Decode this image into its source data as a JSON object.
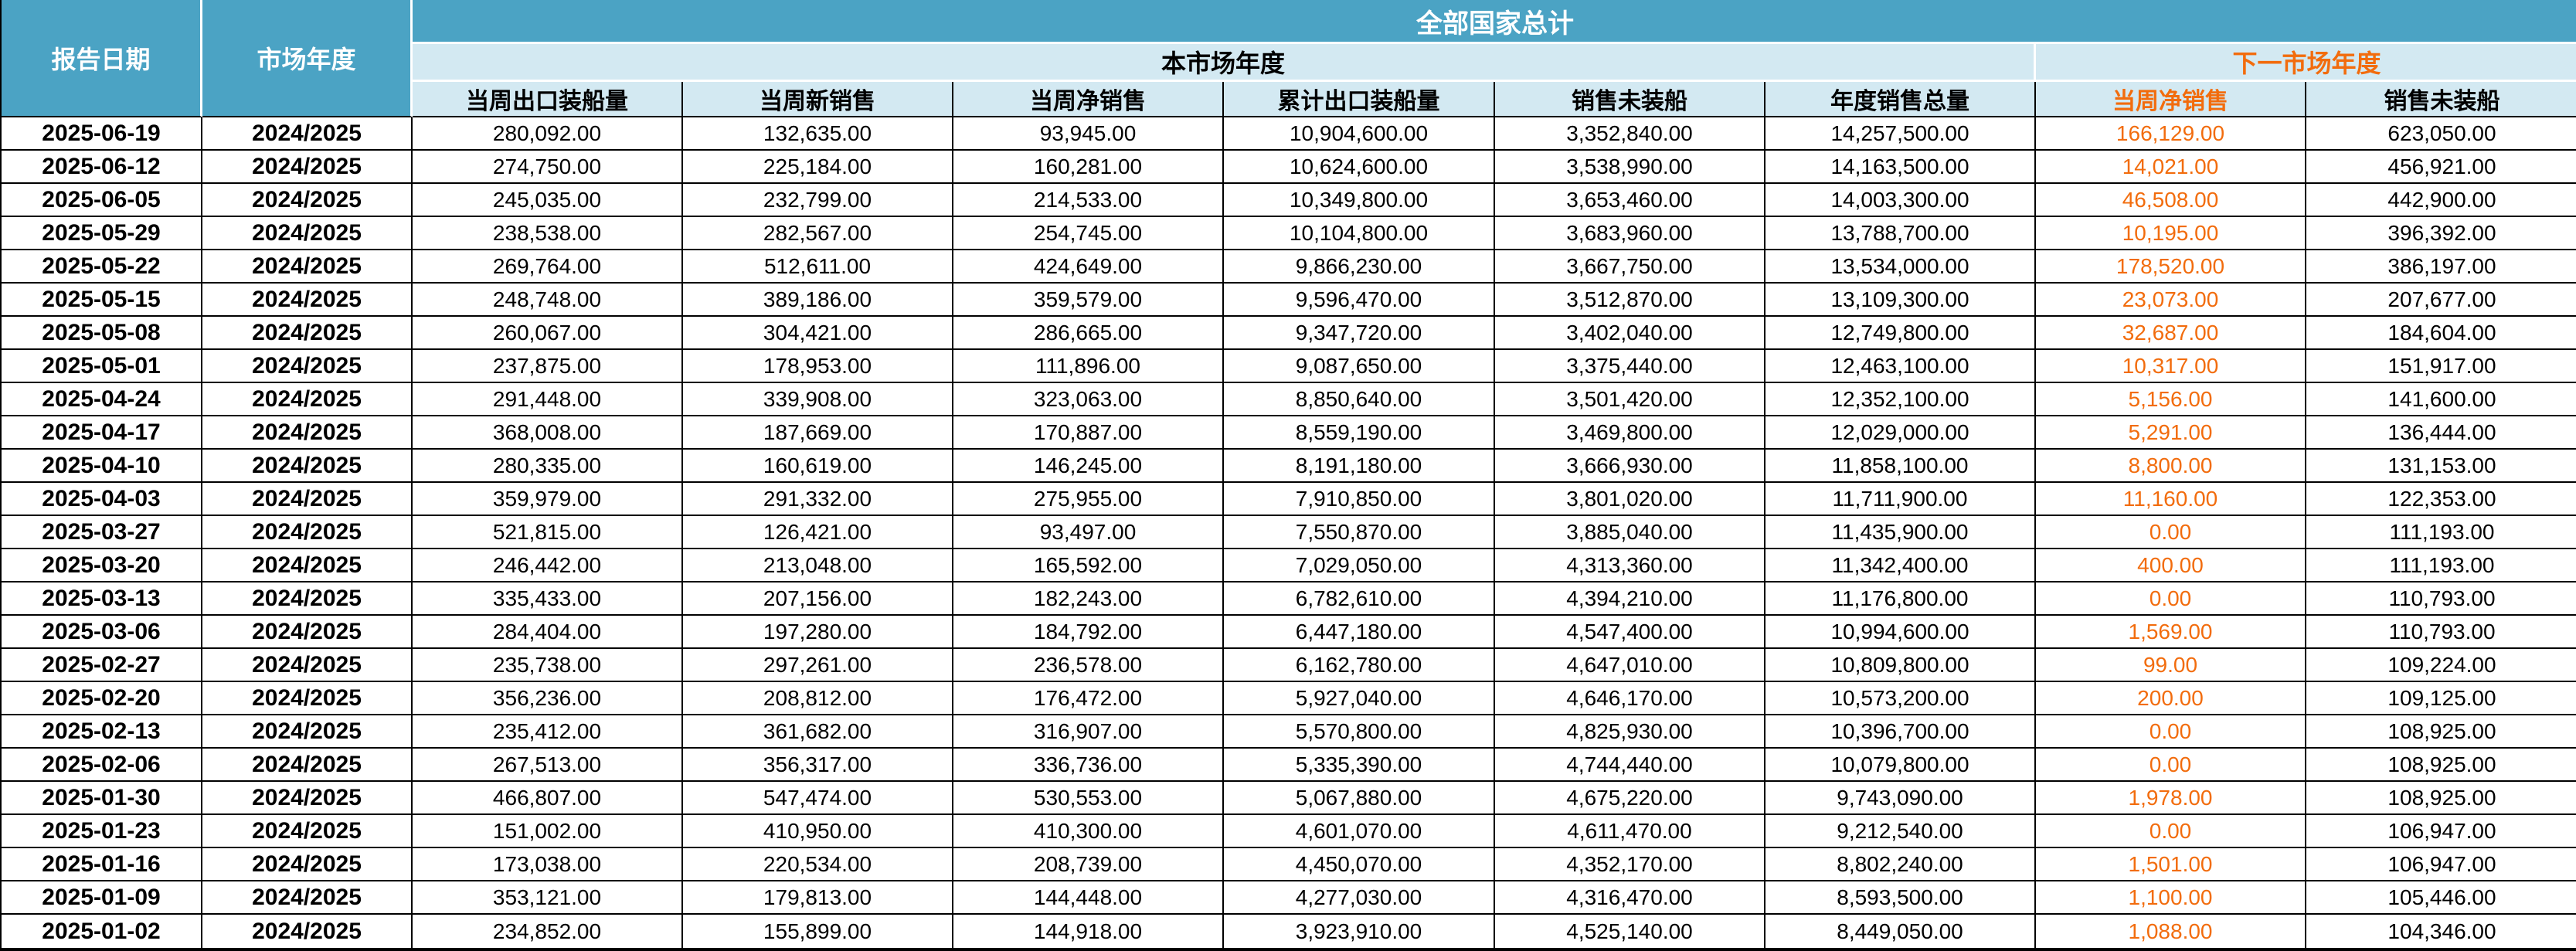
{
  "table": {
    "corner_headers": {
      "report_date": "报告日期",
      "market_year": "市场年度"
    },
    "group_header": "全部国家总计",
    "subgroups": {
      "current": "本市场年度",
      "next": "下一市场年度"
    },
    "columns": [
      "当周出口装船量",
      "当周新销售",
      "当周净销售",
      "累计出口装船量",
      "销售未装船",
      "年度销售总量",
      "当周净销售",
      "销售未装船"
    ],
    "rows": [
      [
        "2025-06-19",
        "2024/2025",
        "280,092.00",
        "132,635.00",
        "93,945.00",
        "10,904,600.00",
        "3,352,840.00",
        "14,257,500.00",
        "166,129.00",
        "623,050.00"
      ],
      [
        "2025-06-12",
        "2024/2025",
        "274,750.00",
        "225,184.00",
        "160,281.00",
        "10,624,600.00",
        "3,538,990.00",
        "14,163,500.00",
        "14,021.00",
        "456,921.00"
      ],
      [
        "2025-06-05",
        "2024/2025",
        "245,035.00",
        "232,799.00",
        "214,533.00",
        "10,349,800.00",
        "3,653,460.00",
        "14,003,300.00",
        "46,508.00",
        "442,900.00"
      ],
      [
        "2025-05-29",
        "2024/2025",
        "238,538.00",
        "282,567.00",
        "254,745.00",
        "10,104,800.00",
        "3,683,960.00",
        "13,788,700.00",
        "10,195.00",
        "396,392.00"
      ],
      [
        "2025-05-22",
        "2024/2025",
        "269,764.00",
        "512,611.00",
        "424,649.00",
        "9,866,230.00",
        "3,667,750.00",
        "13,534,000.00",
        "178,520.00",
        "386,197.00"
      ],
      [
        "2025-05-15",
        "2024/2025",
        "248,748.00",
        "389,186.00",
        "359,579.00",
        "9,596,470.00",
        "3,512,870.00",
        "13,109,300.00",
        "23,073.00",
        "207,677.00"
      ],
      [
        "2025-05-08",
        "2024/2025",
        "260,067.00",
        "304,421.00",
        "286,665.00",
        "9,347,720.00",
        "3,402,040.00",
        "12,749,800.00",
        "32,687.00",
        "184,604.00"
      ],
      [
        "2025-05-01",
        "2024/2025",
        "237,875.00",
        "178,953.00",
        "111,896.00",
        "9,087,650.00",
        "3,375,440.00",
        "12,463,100.00",
        "10,317.00",
        "151,917.00"
      ],
      [
        "2025-04-24",
        "2024/2025",
        "291,448.00",
        "339,908.00",
        "323,063.00",
        "8,850,640.00",
        "3,501,420.00",
        "12,352,100.00",
        "5,156.00",
        "141,600.00"
      ],
      [
        "2025-04-17",
        "2024/2025",
        "368,008.00",
        "187,669.00",
        "170,887.00",
        "8,559,190.00",
        "3,469,800.00",
        "12,029,000.00",
        "5,291.00",
        "136,444.00"
      ],
      [
        "2025-04-10",
        "2024/2025",
        "280,335.00",
        "160,619.00",
        "146,245.00",
        "8,191,180.00",
        "3,666,930.00",
        "11,858,100.00",
        "8,800.00",
        "131,153.00"
      ],
      [
        "2025-04-03",
        "2024/2025",
        "359,979.00",
        "291,332.00",
        "275,955.00",
        "7,910,850.00",
        "3,801,020.00",
        "11,711,900.00",
        "11,160.00",
        "122,353.00"
      ],
      [
        "2025-03-27",
        "2024/2025",
        "521,815.00",
        "126,421.00",
        "93,497.00",
        "7,550,870.00",
        "3,885,040.00",
        "11,435,900.00",
        "0.00",
        "111,193.00"
      ],
      [
        "2025-03-20",
        "2024/2025",
        "246,442.00",
        "213,048.00",
        "165,592.00",
        "7,029,050.00",
        "4,313,360.00",
        "11,342,400.00",
        "400.00",
        "111,193.00"
      ],
      [
        "2025-03-13",
        "2024/2025",
        "335,433.00",
        "207,156.00",
        "182,243.00",
        "6,782,610.00",
        "4,394,210.00",
        "11,176,800.00",
        "0.00",
        "110,793.00"
      ],
      [
        "2025-03-06",
        "2024/2025",
        "284,404.00",
        "197,280.00",
        "184,792.00",
        "6,447,180.00",
        "4,547,400.00",
        "10,994,600.00",
        "1,569.00",
        "110,793.00"
      ],
      [
        "2025-02-27",
        "2024/2025",
        "235,738.00",
        "297,261.00",
        "236,578.00",
        "6,162,780.00",
        "4,647,010.00",
        "10,809,800.00",
        "99.00",
        "109,224.00"
      ],
      [
        "2025-02-20",
        "2024/2025",
        "356,236.00",
        "208,812.00",
        "176,472.00",
        "5,927,040.00",
        "4,646,170.00",
        "10,573,200.00",
        "200.00",
        "109,125.00"
      ],
      [
        "2025-02-13",
        "2024/2025",
        "235,412.00",
        "361,682.00",
        "316,907.00",
        "5,570,800.00",
        "4,825,930.00",
        "10,396,700.00",
        "0.00",
        "108,925.00"
      ],
      [
        "2025-02-06",
        "2024/2025",
        "267,513.00",
        "356,317.00",
        "336,736.00",
        "5,335,390.00",
        "4,744,440.00",
        "10,079,800.00",
        "0.00",
        "108,925.00"
      ],
      [
        "2025-01-30",
        "2024/2025",
        "466,807.00",
        "547,474.00",
        "530,553.00",
        "5,067,880.00",
        "4,675,220.00",
        "9,743,090.00",
        "1,978.00",
        "108,925.00"
      ],
      [
        "2025-01-23",
        "2024/2025",
        "151,002.00",
        "410,950.00",
        "410,300.00",
        "4,601,070.00",
        "4,611,470.00",
        "9,212,540.00",
        "0.00",
        "106,947.00"
      ],
      [
        "2025-01-16",
        "2024/2025",
        "173,038.00",
        "220,534.00",
        "208,739.00",
        "4,450,070.00",
        "4,352,170.00",
        "8,802,240.00",
        "1,501.00",
        "106,947.00"
      ],
      [
        "2025-01-09",
        "2024/2025",
        "353,121.00",
        "179,813.00",
        "144,448.00",
        "4,277,030.00",
        "4,316,470.00",
        "8,593,500.00",
        "1,100.00",
        "105,446.00"
      ],
      [
        "2025-01-02",
        "2024/2025",
        "234,852.00",
        "155,899.00",
        "144,918.00",
        "3,923,910.00",
        "4,525,140.00",
        "8,449,050.00",
        "1,088.00",
        "104,346.00"
      ]
    ]
  },
  "colors": {
    "header_teal": "#4BA3C4",
    "header_light_blue": "#D3E9F2",
    "accent_orange": "#F26C0D",
    "grid_black": "#000000",
    "header_separator_white": "#FFFFFF"
  }
}
